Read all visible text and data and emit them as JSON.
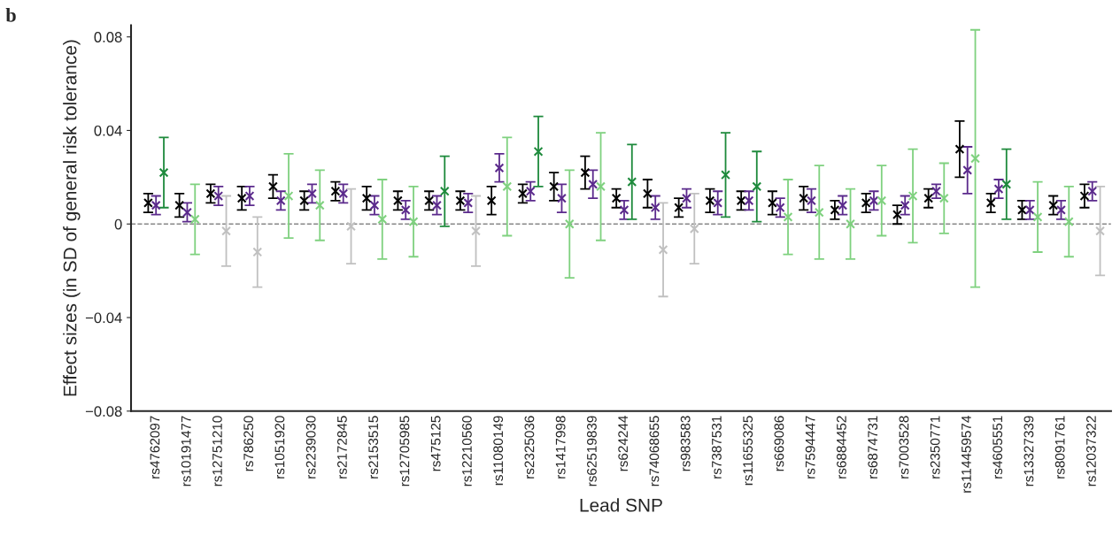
{
  "chart_data": {
    "type": "scatter",
    "ylabel": "Effect sizes (in SD of general risk tolerance)",
    "xlabel": "Lead SNP",
    "annotations": [
      "b"
    ],
    "categories": [
      "rs4762097",
      "rs10191477",
      "rs12751210",
      "rs786250",
      "rs1051920",
      "rs2239030",
      "rs2172845",
      "rs2153515",
      "rs12705985",
      "rs475125",
      "rs12210560",
      "rs11080149",
      "rs2325036",
      "rs1417998",
      "rs62519839",
      "rs624244",
      "rs74068655",
      "rs983583",
      "rs7387531",
      "rs11655325",
      "rs669086",
      "rs7594447",
      "rs6884452",
      "rs6874731",
      "rs7003528",
      "rs2350771",
      "rs114459574",
      "rs4605551",
      "rs13327339",
      "rs8091761",
      "rs12037322"
    ],
    "ylim": [
      -0.08,
      0.085
    ],
    "yticks": [
      {
        "value": -0.08,
        "label": "−0.08"
      },
      {
        "value": -0.04,
        "label": "−0.04"
      },
      0,
      0.04,
      0.08
    ],
    "marker": "cross",
    "grid": false,
    "legend": false,
    "ref_lines": [
      {
        "axis": "y",
        "value": 0,
        "color": "#888888",
        "line_style": "dashed"
      }
    ],
    "series": [
      {
        "color": "#000000",
        "values": [
          0.009,
          0.008,
          0.013,
          0.011,
          0.016,
          0.01,
          0.014,
          0.011,
          0.01,
          0.01,
          0.01,
          0.01,
          0.013,
          0.016,
          0.022,
          0.011,
          0.013,
          0.007,
          0.01,
          0.01,
          0.009,
          0.011,
          0.006,
          0.009,
          0.004,
          0.011,
          0.032,
          0.009,
          0.006,
          0.008,
          0.012
        ],
        "errors": [
          0.004,
          0.005,
          0.004,
          0.005,
          0.005,
          0.004,
          0.004,
          0.005,
          0.004,
          0.004,
          0.004,
          0.006,
          0.004,
          0.006,
          0.007,
          0.004,
          0.006,
          0.004,
          0.005,
          0.004,
          0.005,
          0.005,
          0.004,
          0.004,
          0.004,
          0.004,
          0.012,
          0.004,
          0.004,
          0.004,
          0.005
        ]
      },
      {
        "color": "#5b2a8c",
        "values": [
          0.008,
          0.005,
          0.012,
          0.012,
          0.01,
          0.013,
          0.013,
          0.008,
          0.006,
          0.008,
          0.009,
          0.024,
          0.014,
          0.011,
          0.017,
          0.006,
          0.007,
          0.011,
          0.009,
          0.01,
          0.007,
          0.01,
          0.008,
          0.01,
          0.008,
          0.014,
          0.023,
          0.015,
          0.006,
          0.006,
          0.014
        ],
        "errors": [
          0.004,
          0.004,
          0.004,
          0.004,
          0.004,
          0.004,
          0.004,
          0.004,
          0.004,
          0.004,
          0.004,
          0.006,
          0.004,
          0.006,
          0.006,
          0.004,
          0.005,
          0.004,
          0.005,
          0.004,
          0.004,
          0.005,
          0.004,
          0.004,
          0.004,
          0.003,
          0.01,
          0.004,
          0.004,
          0.004,
          0.004
        ]
      },
      {
        "colors": [
          "#1e8a3c",
          "#7fd17f",
          "#c0c0c0",
          "#c0c0c0",
          "#7fd17f",
          "#7fd17f",
          "#c0c0c0",
          "#7fd17f",
          "#7fd17f",
          "#1e8a3c",
          "#c0c0c0",
          "#7fd17f",
          "#1e8a3c",
          "#7fd17f",
          "#7fd17f",
          "#1e8a3c",
          "#c0c0c0",
          "#c0c0c0",
          "#1e8a3c",
          "#1e8a3c",
          "#7fd17f",
          "#7fd17f",
          "#7fd17f",
          "#7fd17f",
          "#7fd17f",
          "#7fd17f",
          "#7fd17f",
          "#1e8a3c",
          "#7fd17f",
          "#7fd17f",
          "#c0c0c0"
        ],
        "values": [
          0.022,
          0.002,
          -0.003,
          -0.012,
          0.012,
          0.008,
          -0.001,
          0.002,
          0.001,
          0.014,
          -0.003,
          0.016,
          0.031,
          0.0,
          0.016,
          0.018,
          -0.011,
          -0.002,
          0.021,
          0.016,
          0.003,
          0.005,
          0.0,
          0.01,
          0.012,
          0.011,
          0.028,
          0.017,
          0.003,
          0.001,
          -0.003
        ],
        "errors": [
          0.015,
          0.015,
          0.015,
          0.015,
          0.018,
          0.015,
          0.016,
          0.017,
          0.015,
          0.015,
          0.015,
          0.021,
          0.015,
          0.023,
          0.023,
          0.016,
          0.02,
          0.015,
          0.018,
          0.015,
          0.016,
          0.02,
          0.015,
          0.015,
          0.02,
          0.015,
          0.055,
          0.015,
          0.015,
          0.015,
          0.019
        ]
      }
    ]
  }
}
